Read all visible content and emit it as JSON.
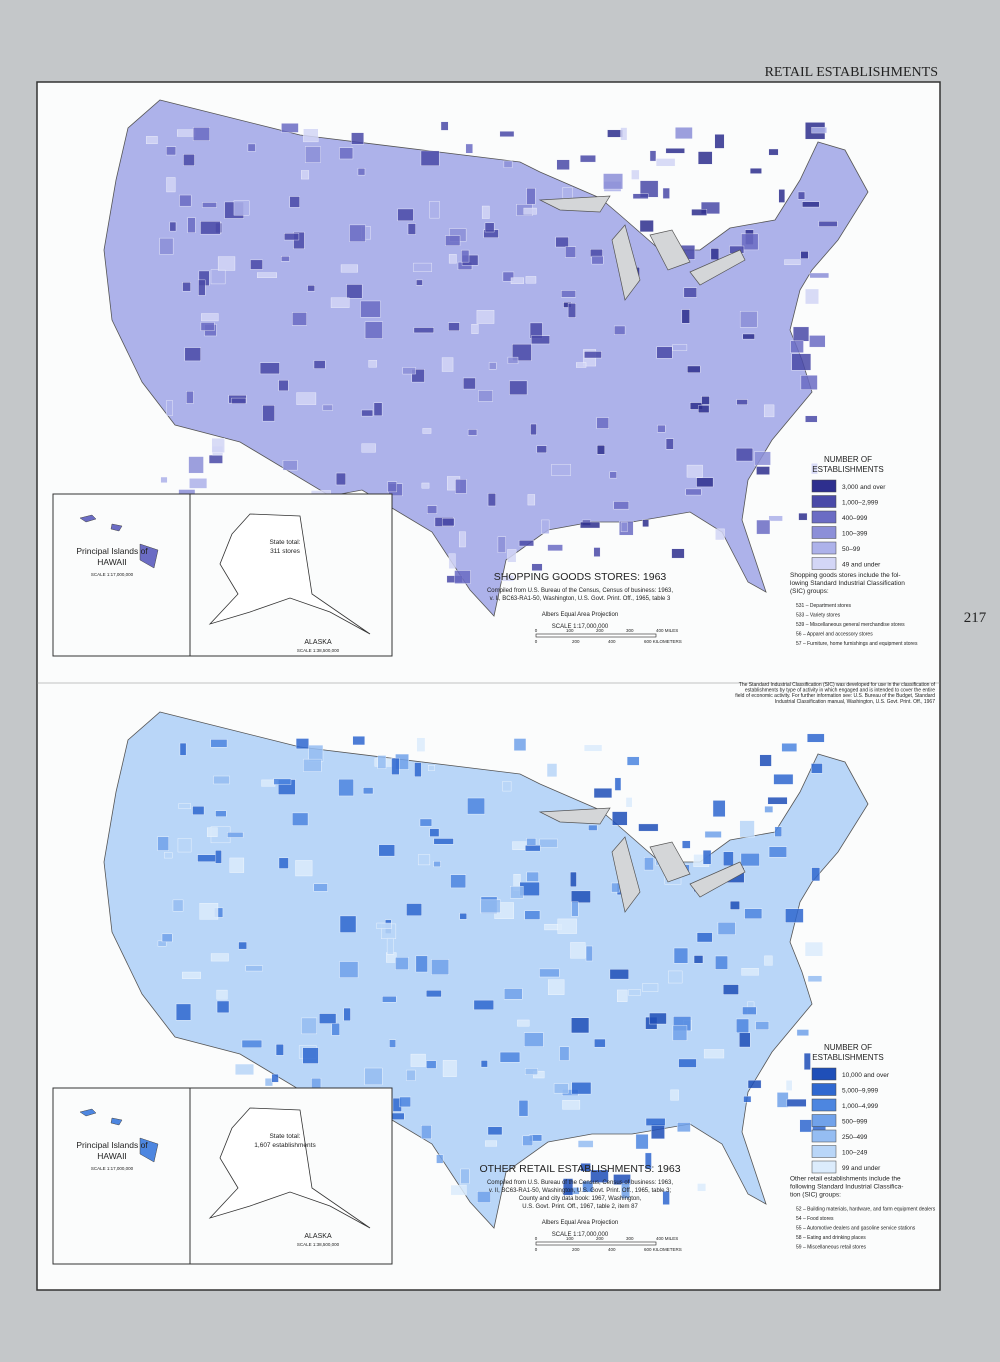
{
  "header": "RETAIL ESTABLISHMENTS",
  "page_number": "217",
  "footnote": [
    "The Standard Industrial Classification (SIC) was developed for use in the classification of",
    "establishments by type of activity in which engaged and is intended to cover the entire",
    "field of economic activity. For further information see: U.S. Bureau of the Budget, Standard",
    "Industrial Classification manual, Washington, U.S. Govt. Print. Off., 1967"
  ],
  "maps": [
    {
      "title": "SHOPPING GOODS STORES: 1963",
      "source": [
        "Compiled from U.S. Bureau of the Census, Census of business: 1963,",
        "v. II, BC63-RA1-50, Washington, U.S. Govt. Print. Off., 1965, table 3"
      ],
      "projection": "Albers Equal Area Projection",
      "scale": "SCALE 1:17,000,000",
      "miles": [
        "0",
        "100",
        "200",
        "300",
        "400 MILES"
      ],
      "km": [
        "0",
        "200",
        "400",
        "600 KILOMETERS"
      ],
      "legend_title": [
        "NUMBER OF",
        "ESTABLISHMENTS"
      ],
      "legend": [
        {
          "label": "3,000 and over",
          "color": "#2e2f8e"
        },
        {
          "label": "1,000–2,999",
          "color": "#4a4aa8"
        },
        {
          "label": "400–999",
          "color": "#6b6cc4"
        },
        {
          "label": "100–399",
          "color": "#8c8fd8"
        },
        {
          "label": "50–99",
          "color": "#adb2ea"
        },
        {
          "label": "49 and under",
          "color": "#d3d6f6"
        }
      ],
      "note": [
        "Shopping goods stores include the fol-",
        "lowing Standard Industrial Classification",
        "(SIC) groups:"
      ],
      "groups": [
        "531 – Department stores",
        "533 – Variety stores",
        "539 – Miscellaneous general merchandise stores",
        "56 – Apparel and accessory stores",
        "57 – Furniture, home furnishings and equipment stores"
      ],
      "hawaii": [
        "Principal Islands of",
        "HAWAII"
      ],
      "hawaii_scale": "SCALE 1:17,000,000",
      "state_total": [
        "State total:",
        "311 stores"
      ],
      "alaska": "ALASKA",
      "alaska_scale": "SCALE 1:38,500,000"
    },
    {
      "title": "OTHER RETAIL ESTABLISHMENTS: 1963",
      "source": [
        "Compiled from U.S. Bureau of the Census, Census of business: 1963,",
        "v. II, BC63-RA1-50, Washington, U.S. Govt. Print. Off., 1965, table 3;",
        "County and city data book: 1967, Washington,",
        "U.S. Govt. Print. Off., 1967, table 2, item 87"
      ],
      "projection": "Albers Equal Area Projection",
      "scale": "SCALE 1:17,000,000",
      "miles": [
        "0",
        "100",
        "200",
        "300",
        "400 MILES"
      ],
      "km": [
        "0",
        "200",
        "400",
        "600 KILOMETERS"
      ],
      "legend_title": [
        "NUMBER OF",
        "ESTABLISHMENTS"
      ],
      "legend": [
        {
          "label": "10,000 and over",
          "color": "#1f4fb8"
        },
        {
          "label": "5,000–9,999",
          "color": "#2f68d0"
        },
        {
          "label": "1,000–4,999",
          "color": "#4d86e0"
        },
        {
          "label": "500–999",
          "color": "#71a2ea"
        },
        {
          "label": "250–499",
          "color": "#95bdf2"
        },
        {
          "label": "100–249",
          "color": "#b9d6f8"
        },
        {
          "label": "99 and under",
          "color": "#dcecfc"
        }
      ],
      "note": [
        "Other retail establishments include the",
        "following Standard Industrial Classifica-",
        "tion (SIC) groups:"
      ],
      "groups": [
        "52 – Building materials, hardware, and farm equipment dealers",
        "54 – Food stores",
        "55 – Automotive dealers and gasoline service stations",
        "58 – Eating and drinking places",
        "59 – Miscellaneous retail stores"
      ],
      "hawaii": [
        "Principal Islands of",
        "HAWAII"
      ],
      "hawaii_scale": "SCALE 1:17,000,000",
      "state_total": [
        "State total:",
        "1,607 establishments"
      ],
      "alaska": "ALASKA",
      "alaska_scale": "SCALE 1:38,500,000"
    }
  ]
}
